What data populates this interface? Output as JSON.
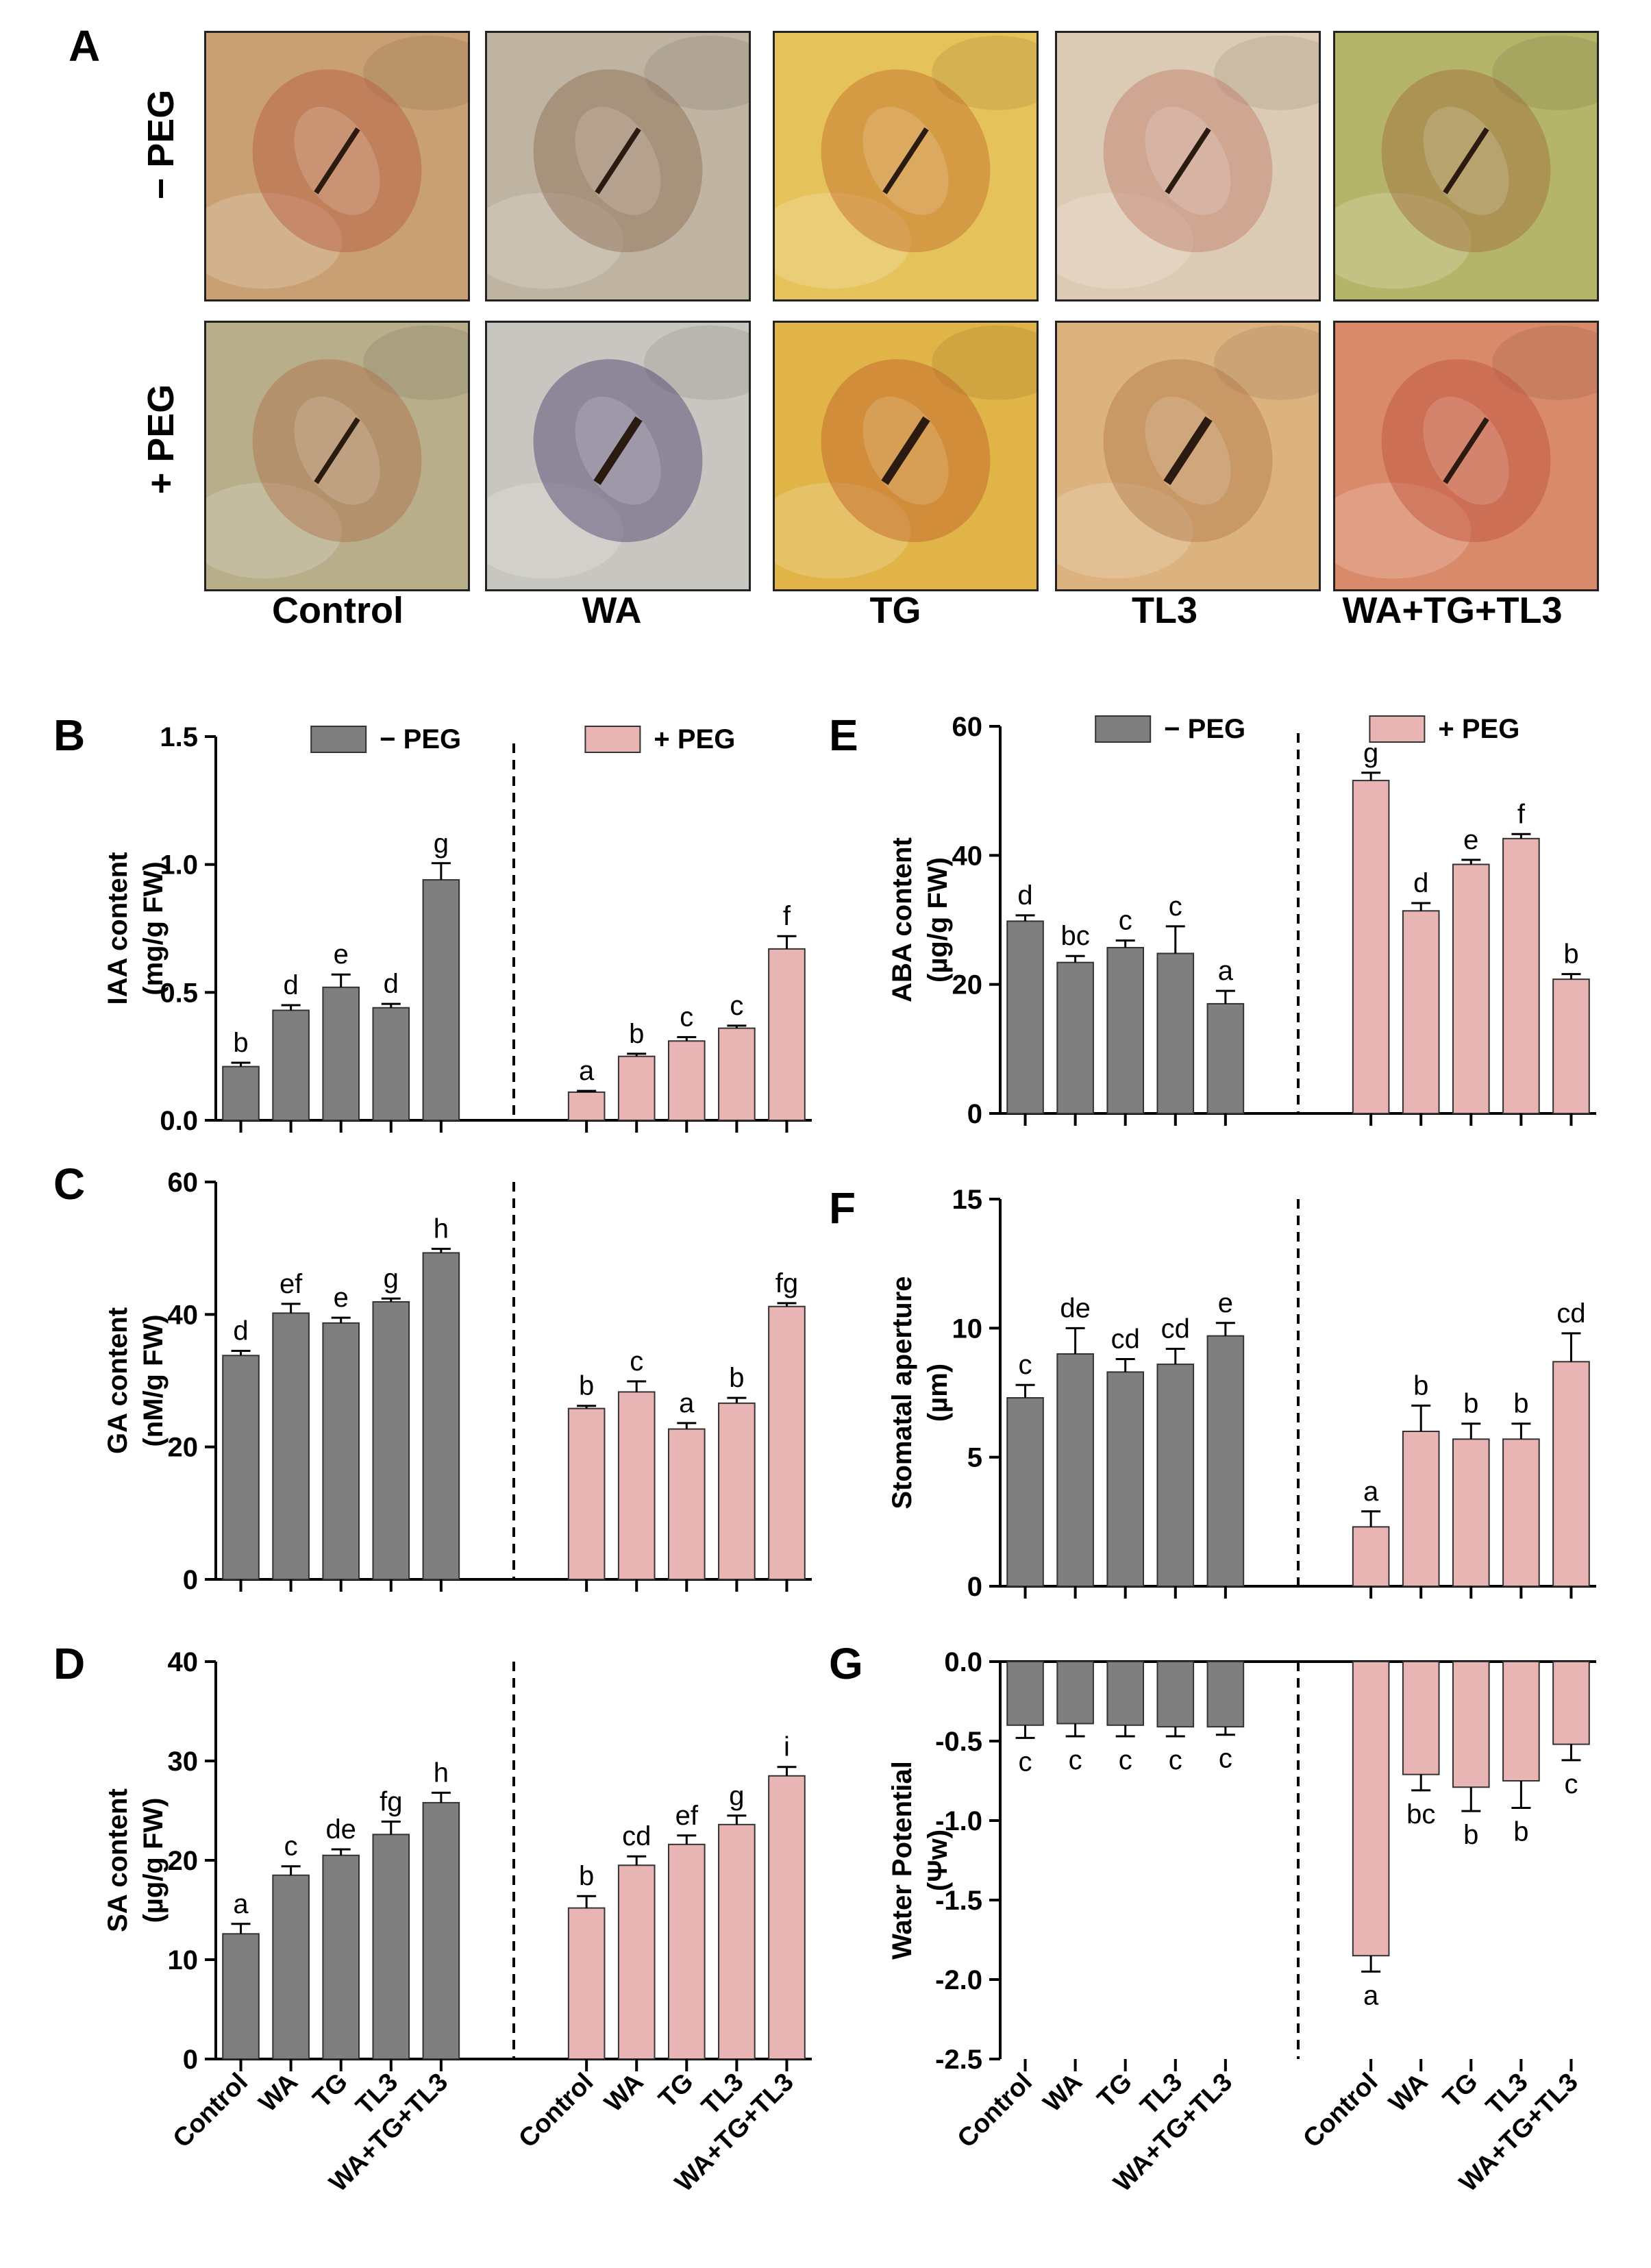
{
  "panel_a": {
    "letter": "A",
    "row_labels": [
      "− PEG",
      "+ PEG"
    ],
    "column_labels": [
      "Control",
      "WA",
      "TG",
      "TL3",
      "WA+TG+TL3"
    ]
  },
  "colors": {
    "minus_peg": "#7f7f7f",
    "plus_peg": "#e8b4b4"
  },
  "legend": {
    "minus": "− PEG",
    "plus": "+ PEG"
  },
  "treatments": [
    "Control",
    "WA",
    "TG",
    "TL3",
    "WA+TG+TL3"
  ],
  "chart_data": [
    {
      "id": "B",
      "letter": "B",
      "type": "bar",
      "ylabel": [
        "IAA content",
        "(mg/g FW)"
      ],
      "ylim": [
        0,
        1.5
      ],
      "yticks": [
        "0.0",
        "0.5",
        "1.0",
        "1.5"
      ],
      "ytick_values": [
        0,
        0.5,
        1.0,
        1.5
      ],
      "legend": true,
      "x_labels": false,
      "categories": [
        "Control",
        "WA",
        "TG",
        "TL3",
        "WA+TG+TL3"
      ],
      "series": [
        {
          "name": "− PEG",
          "values": [
            0.21,
            0.43,
            0.52,
            0.44,
            0.94
          ],
          "errors": [
            0.015,
            0.02,
            0.05,
            0.015,
            0.065
          ],
          "letters": [
            "b",
            "d",
            "e",
            "d",
            "g"
          ]
        },
        {
          "name": "+ PEG",
          "values": [
            0.11,
            0.25,
            0.31,
            0.36,
            0.67
          ],
          "errors": [
            0.005,
            0.01,
            0.015,
            0.01,
            0.05
          ],
          "letters": [
            "a",
            "b",
            "c",
            "c",
            "f"
          ]
        }
      ]
    },
    {
      "id": "C",
      "letter": "C",
      "type": "bar",
      "ylabel": [
        "GA content",
        "(nM/g FW)"
      ],
      "ylim": [
        0,
        60
      ],
      "yticks": [
        "0",
        "20",
        "40",
        "60"
      ],
      "ytick_values": [
        0,
        20,
        40,
        60
      ],
      "legend": false,
      "x_labels": false,
      "categories": [
        "Control",
        "WA",
        "TG",
        "TL3",
        "WA+TG+TL3"
      ],
      "series": [
        {
          "name": "− PEG",
          "values": [
            33.8,
            40.2,
            38.7,
            41.9,
            49.3
          ],
          "errors": [
            0.7,
            1.4,
            0.8,
            0.5,
            0.6
          ],
          "letters": [
            "d",
            "ef",
            "e",
            "g",
            "h"
          ]
        },
        {
          "name": "+ PEG",
          "values": [
            25.8,
            28.3,
            22.7,
            26.6,
            41.2
          ],
          "errors": [
            0.4,
            1.6,
            0.9,
            0.8,
            0.5
          ],
          "letters": [
            "b",
            "c",
            "a",
            "b",
            "fg"
          ]
        }
      ]
    },
    {
      "id": "D",
      "letter": "D",
      "type": "bar",
      "ylabel": [
        "SA content",
        "(µg/g FW)"
      ],
      "ylim": [
        0,
        40
      ],
      "yticks": [
        "0",
        "10",
        "20",
        "30",
        "40"
      ],
      "ytick_values": [
        0,
        10,
        20,
        30,
        40
      ],
      "legend": false,
      "x_labels": true,
      "categories": [
        "Control",
        "WA",
        "TG",
        "TL3",
        "WA+TG+TL3"
      ],
      "series": [
        {
          "name": "− PEG",
          "values": [
            12.6,
            18.5,
            20.5,
            22.6,
            25.8
          ],
          "errors": [
            1.0,
            0.9,
            0.6,
            1.3,
            1.0
          ],
          "letters": [
            "a",
            "c",
            "de",
            "fg",
            "h"
          ]
        },
        {
          "name": "+ PEG",
          "values": [
            15.2,
            19.5,
            21.6,
            23.6,
            28.5
          ],
          "errors": [
            1.2,
            0.9,
            0.9,
            0.9,
            0.9
          ],
          "letters": [
            "b",
            "cd",
            "ef",
            "g",
            "i"
          ]
        }
      ]
    },
    {
      "id": "E",
      "letter": "E",
      "type": "bar",
      "ylabel": [
        "ABA content",
        "(µg/g FW)"
      ],
      "ylim": [
        0,
        60
      ],
      "yticks": [
        "0",
        "20",
        "40",
        "60"
      ],
      "ytick_values": [
        0,
        20,
        40,
        60
      ],
      "legend": true,
      "x_labels": false,
      "categories": [
        "Control",
        "WA",
        "TG",
        "TL3",
        "WA+TG+TL3"
      ],
      "series": [
        {
          "name": "− PEG",
          "values": [
            29.8,
            23.4,
            25.7,
            24.8,
            17.0
          ],
          "errors": [
            0.9,
            1.0,
            1.1,
            4.2,
            2.0
          ],
          "letters": [
            "d",
            "bc",
            "c",
            "c",
            "a"
          ]
        },
        {
          "name": "+ PEG",
          "values": [
            51.6,
            31.4,
            38.6,
            42.6,
            20.8
          ],
          "errors": [
            1.2,
            1.2,
            0.7,
            0.7,
            0.8
          ],
          "letters": [
            "g",
            "d",
            "e",
            "f",
            "b"
          ]
        }
      ]
    },
    {
      "id": "F",
      "letter": "F",
      "type": "bar",
      "ylabel": [
        "Stomatal aperture",
        "(µm)"
      ],
      "ylim": [
        0,
        15
      ],
      "yticks": [
        "0",
        "5",
        "10",
        "15"
      ],
      "ytick_values": [
        0,
        5,
        10,
        15
      ],
      "legend": false,
      "x_labels": false,
      "categories": [
        "Control",
        "WA",
        "TG",
        "TL3",
        "WA+TG+TL3"
      ],
      "series": [
        {
          "name": "− PEG",
          "values": [
            7.3,
            9.0,
            8.3,
            8.6,
            9.7
          ],
          "errors": [
            0.5,
            1.0,
            0.5,
            0.6,
            0.5
          ],
          "letters": [
            "c",
            "de",
            "cd",
            "cd",
            "e"
          ]
        },
        {
          "name": "+ PEG",
          "values": [
            2.3,
            6.0,
            5.7,
            5.7,
            8.7
          ],
          "errors": [
            0.6,
            1.0,
            0.6,
            0.6,
            1.1
          ],
          "letters": [
            "a",
            "b",
            "b",
            "b",
            "cd"
          ]
        }
      ]
    },
    {
      "id": "G",
      "letter": "G",
      "type": "bar",
      "ylabel": [
        "Water Potential",
        "(Ψw)"
      ],
      "ylim": [
        -2.5,
        0
      ],
      "yticks": [
        "-2.5",
        "-2.0",
        "-1.5",
        "-1.0",
        "-0.5",
        "0.0"
      ],
      "ytick_values": [
        -2.5,
        -2.0,
        -1.5,
        -1.0,
        -0.5,
        0.0
      ],
      "legend": false,
      "x_labels": true,
      "categories": [
        "Control",
        "WA",
        "TG",
        "TL3",
        "WA+TG+TL3"
      ],
      "series": [
        {
          "name": "− PEG",
          "values": [
            -0.4,
            -0.39,
            -0.4,
            -0.41,
            -0.41
          ],
          "errors": [
            0.08,
            0.08,
            0.07,
            0.06,
            0.05
          ],
          "letters": [
            "c",
            "c",
            "c",
            "c",
            "c"
          ]
        },
        {
          "name": "+ PEG",
          "values": [
            -1.85,
            -0.71,
            -0.79,
            -0.75,
            -0.52
          ],
          "errors": [
            0.1,
            0.1,
            0.15,
            0.17,
            0.1
          ],
          "letters": [
            "a",
            "bc",
            "b",
            "b",
            "c"
          ]
        }
      ]
    }
  ]
}
